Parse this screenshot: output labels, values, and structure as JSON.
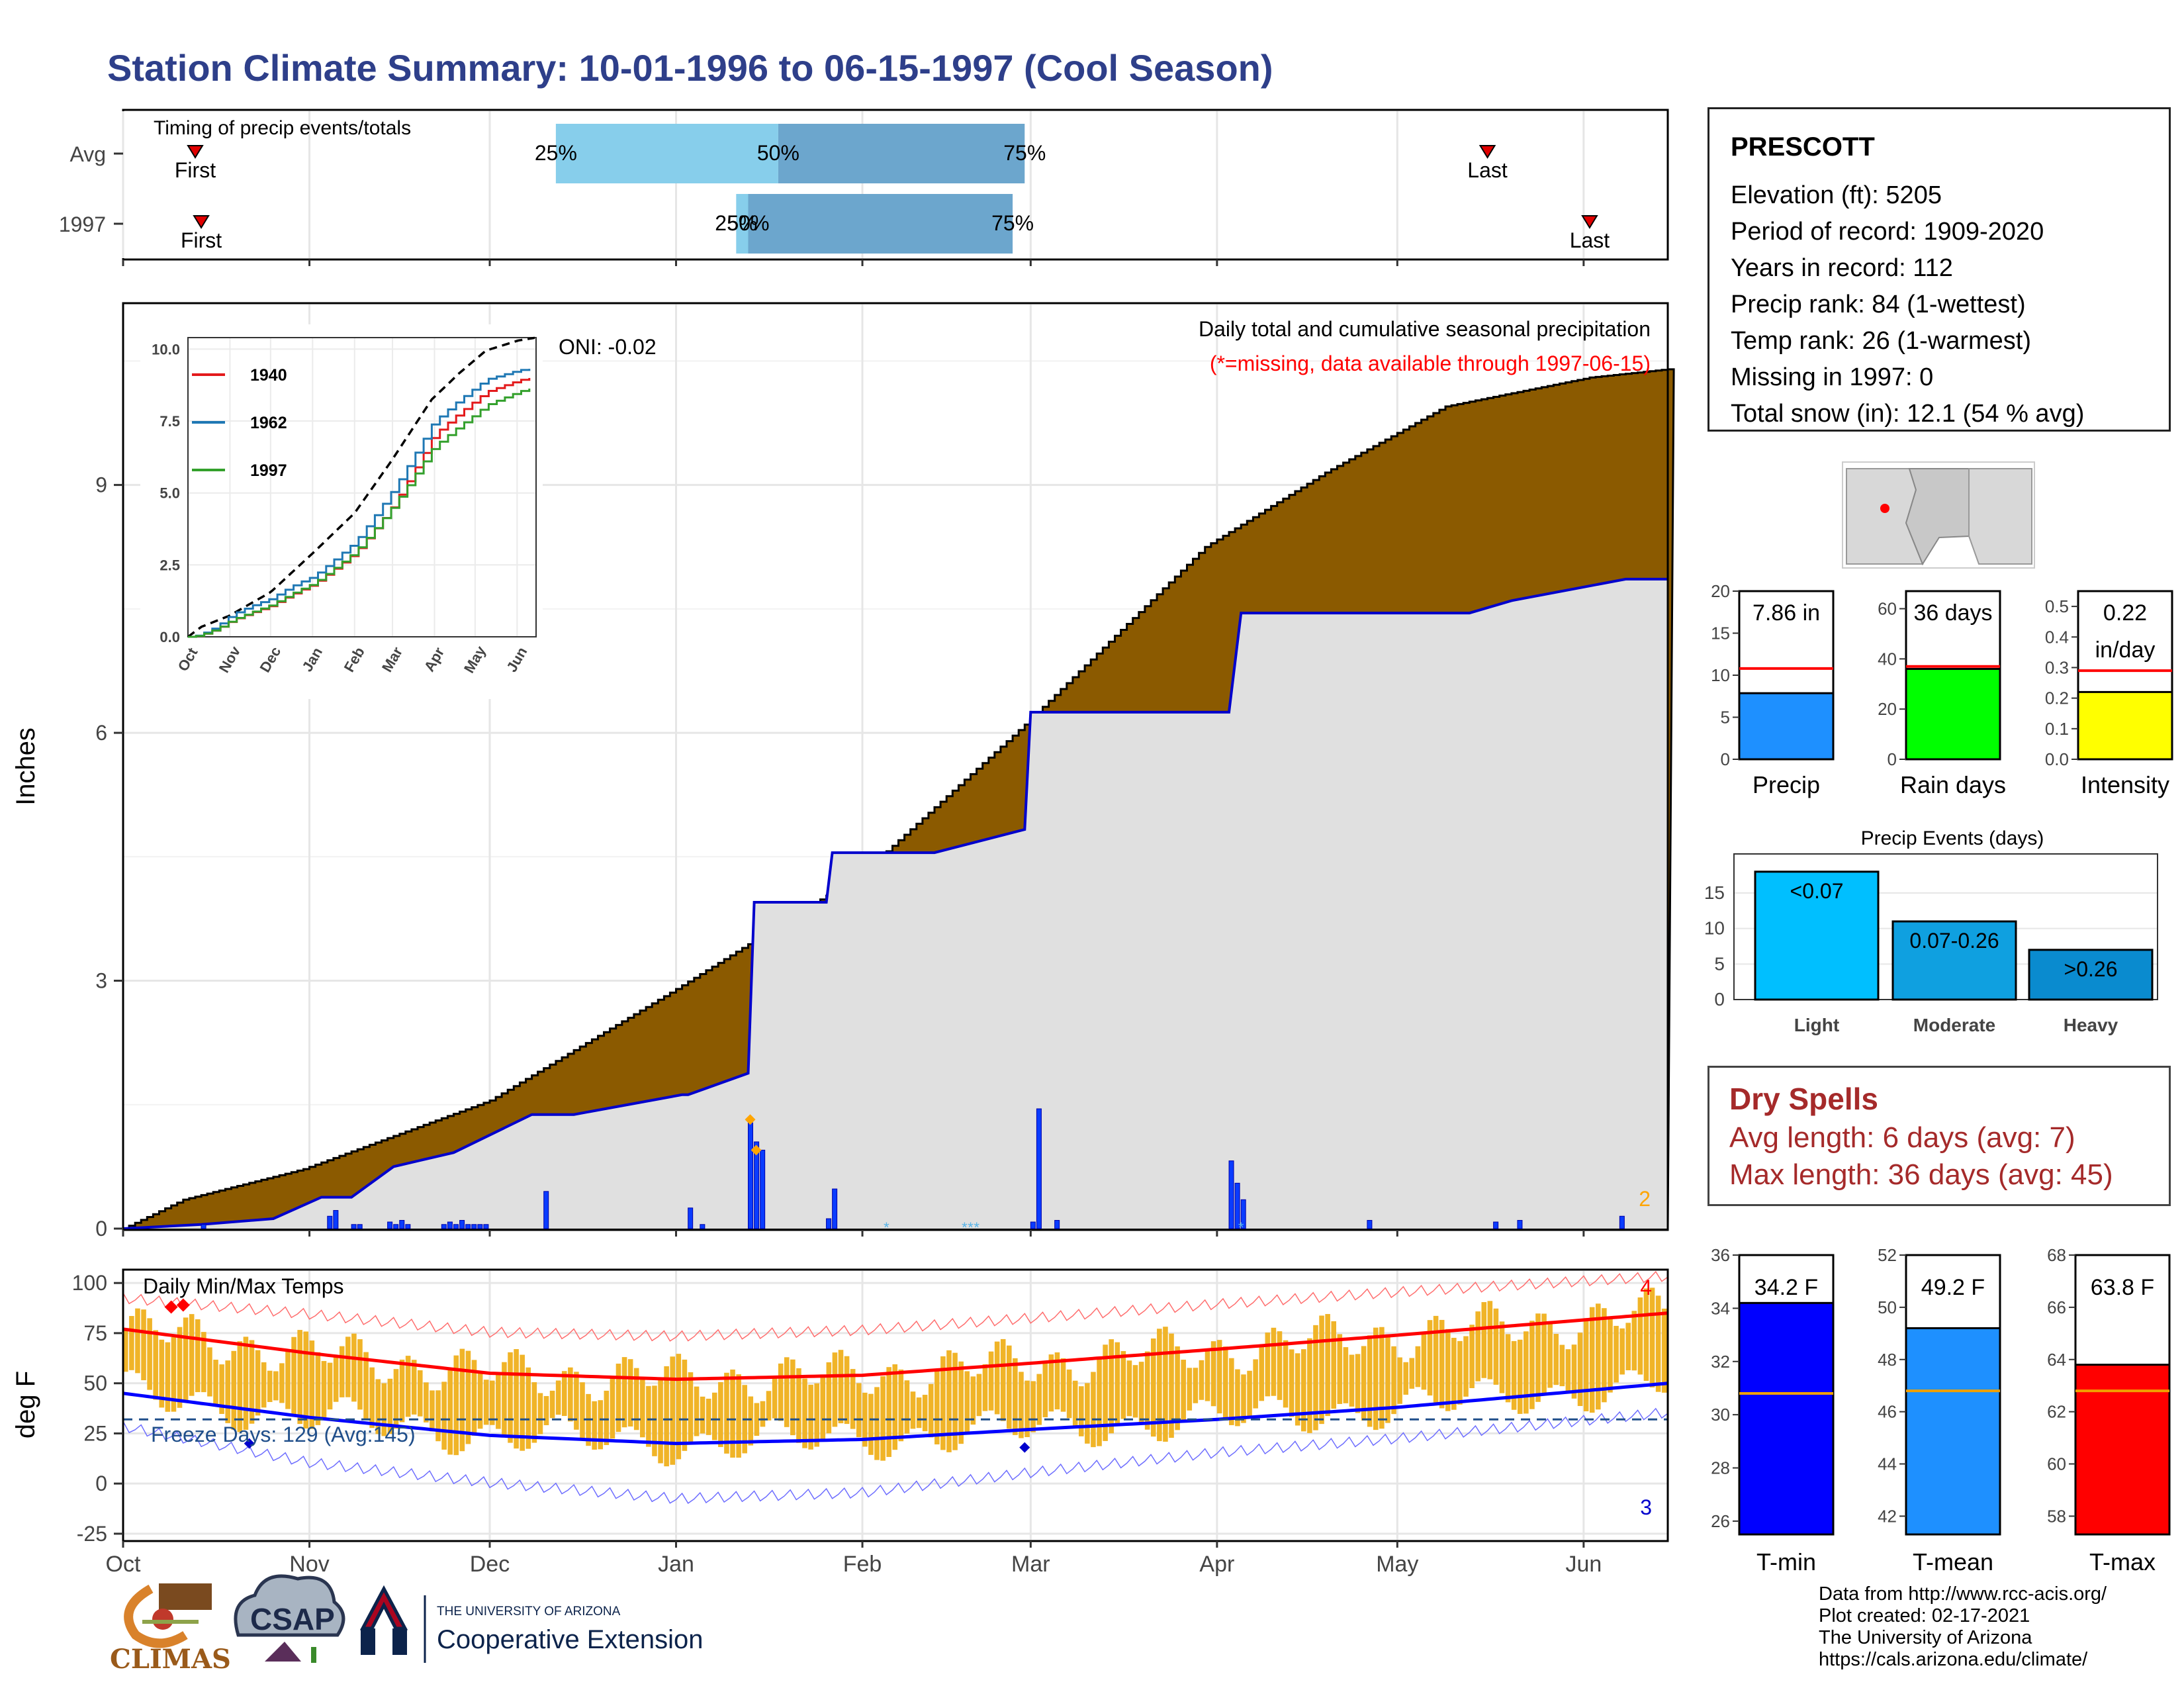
{
  "title": "Station Climate Summary: 10-01-1996 to 06-15-1997 (Cool Season)",
  "colors": {
    "title": "#2e3f8a",
    "avg_cumulative": "#8b5a00",
    "current_cumulative": "#e0e0e0",
    "current_line": "#0000cc",
    "bars_range": "#f0b428",
    "tmax_line": "#ff0000",
    "tmin_line": "#0000ff",
    "spell_text": "#a52a2a"
  },
  "timing": {
    "label": "Timing of precip events/totals",
    "rows": [
      {
        "name": "Avg",
        "first_label": "First",
        "last_label": "Last",
        "first_day": 12,
        "last_day": 227,
        "p25_day": 72,
        "p50_day": 109,
        "p75_day": 150,
        "p25_label": "25%",
        "p50_label": "50%",
        "p75_label": "75%"
      },
      {
        "name": "1997",
        "first_label": "First",
        "last_label": "Last",
        "first_day": 13,
        "last_day": 244,
        "p25_day": 102,
        "p50_day": 104,
        "p75_day": 148,
        "p25_label": "25%",
        "p50_label": "50%",
        "p75_label": "75%"
      }
    ]
  },
  "precip_panel": {
    "ylabel": "Inches",
    "yticks": [
      "0",
      "3",
      "6",
      "9"
    ],
    "oni": "ONI: -0.02",
    "caption": "Daily total and cumulative seasonal precipitation",
    "missing_note": "(*=missing, data available through 1997-06-15)",
    "corner_count": "2"
  },
  "temp_panel": {
    "ylabel": "deg F",
    "title": "Daily Min/Max Temps",
    "yticks": [
      "-25",
      "0",
      "25",
      "50",
      "75",
      "100"
    ],
    "freeze": "Freeze Days: 129 (Avg:145)",
    "count_high": "4",
    "count_low": "3"
  },
  "months": [
    "Oct",
    "Nov",
    "Dec",
    "Jan",
    "Feb",
    "Mar",
    "Apr",
    "May",
    "Jun"
  ],
  "inset": {
    "yticks": [
      "0.0",
      "2.5",
      "5.0",
      "7.5",
      "10.0"
    ],
    "months": [
      "Oct",
      "Nov",
      "Dec",
      "Jan",
      "Feb",
      "Mar",
      "Apr",
      "May",
      "Jun"
    ],
    "legend": [
      {
        "name": "1940",
        "color": "#e31a1c"
      },
      {
        "name": "1962",
        "color": "#1f78b4"
      },
      {
        "name": "1997",
        "color": "#33a02c"
      }
    ]
  },
  "station": {
    "name": "PRESCOTT",
    "lines": [
      "Elevation (ft): 5205",
      "Period of record: 1909-2020",
      "Years in record: 112",
      "Precip rank: 84 (1-wettest)",
      "Temp rank: 26 (1-warmest)",
      "Missing in 1997: 0",
      "Total snow (in): 12.1 (54 % avg)"
    ]
  },
  "summary_bars": [
    {
      "label": "Precip",
      "value_label": "7.86 in",
      "value": 7.86,
      "avg": 10.8,
      "ymax": 20,
      "yticks": [
        "0",
        "5",
        "10",
        "15",
        "20"
      ],
      "color": "#1e90ff"
    },
    {
      "label": "Rain days",
      "value_label": "36 days",
      "value": 36,
      "avg": 37,
      "ymax": 67,
      "yticks": [
        "0",
        "20",
        "40",
        "60"
      ],
      "color": "#00ff00"
    },
    {
      "label": "Intensity",
      "value_label": "0.22",
      "value_label2": "in/day",
      "value": 0.22,
      "avg": 0.29,
      "ymax": 0.55,
      "yticks": [
        "0.0",
        "0.1",
        "0.2",
        "0.3",
        "0.4",
        "0.5"
      ],
      "color": "#ffff00"
    }
  ],
  "precip_events": {
    "title": "Precip Events (days)",
    "yticks": [
      "0",
      "5",
      "10",
      "15"
    ],
    "bars": [
      {
        "label": "Light",
        "value_label": "<0.07",
        "value": 18,
        "color": "#00bfff"
      },
      {
        "label": "Moderate",
        "value_label": "0.07-0.26",
        "value": 11,
        "color": "#0fa0e0"
      },
      {
        "label": "Heavy",
        "value_label": ">0.26",
        "value": 7,
        "color": "#0a8bcf"
      }
    ]
  },
  "dry_spells": {
    "title": "Dry Spells",
    "avg": "Avg length: 6 days (avg: 7)",
    "max": "Max length: 36 days (avg: 45)"
  },
  "temp_bars": [
    {
      "label": "T-min",
      "value_label": "34.2 F",
      "value": 34.2,
      "avg": 30.8,
      "ymin": 25.5,
      "ymax": 36,
      "yticks": [
        "26",
        "28",
        "30",
        "32",
        "34",
        "36"
      ],
      "color": "#0000ff"
    },
    {
      "label": "T-mean",
      "value_label": "49.2 F",
      "value": 49.2,
      "avg": 46.8,
      "ymin": 41.3,
      "ymax": 52,
      "yticks": [
        "42",
        "44",
        "46",
        "48",
        "50",
        "52"
      ],
      "color": "#1e90ff"
    },
    {
      "label": "T-max",
      "value_label": "63.8 F",
      "value": 63.8,
      "avg": 62.8,
      "ymin": 57.3,
      "ymax": 68,
      "yticks": [
        "58",
        "60",
        "62",
        "64",
        "66",
        "68"
      ],
      "color": "#ff0000"
    }
  ],
  "credits": [
    "Data from http://www.rcc-acis.org/",
    "Plot created: 02-17-2021",
    "The University of Arizona",
    "https://cals.arizona.edu/climate/"
  ],
  "logos": {
    "climas": "CLIMAS",
    "csap": "CSAP",
    "ua_small": "THE UNIVERSITY OF ARIZONA",
    "ua_big": "Cooperative Extension"
  },
  "chart_data": [
    {
      "type": "area",
      "title": "Daily total and cumulative seasonal precipitation",
      "ylabel": "Inches",
      "ylim": [
        0,
        11.2
      ],
      "x_unit": "day of season from 1996-10-01",
      "series": [
        {
          "name": "Avg",
          "x": [
            0,
            10,
            30,
            61,
            92,
            123,
            150,
            180,
            200,
            220,
            244,
            257
          ],
          "values": [
            0,
            0.35,
            0.72,
            1.55,
            2.9,
            4.3,
            6.1,
            8.25,
            9.15,
            9.95,
            10.3,
            10.4
          ]
        },
        {
          "name": "1997",
          "x": [
            0,
            13,
            25,
            33,
            38,
            45,
            55,
            68,
            75,
            93,
            94,
            104,
            105,
            117,
            118,
            135,
            150,
            151,
            184,
            186,
            224,
            231,
            250,
            257
          ],
          "values": [
            0,
            0.05,
            0.12,
            0.38,
            0.38,
            0.75,
            0.92,
            1.38,
            1.38,
            1.62,
            1.62,
            1.88,
            3.95,
            3.95,
            4.55,
            4.55,
            4.83,
            6.25,
            6.25,
            7.45,
            7.45,
            7.6,
            7.86,
            7.86
          ]
        },
        {
          "name": "Daily",
          "x": [
            13,
            34,
            35,
            38,
            39,
            44,
            45,
            46,
            47,
            53,
            54,
            55,
            56,
            57,
            58,
            59,
            60,
            70,
            94,
            96,
            104,
            105,
            106,
            117,
            118,
            151,
            152,
            155,
            184,
            185,
            186,
            207,
            228,
            232,
            249
          ],
          "values": [
            0.05,
            0.15,
            0.22,
            0.05,
            0.05,
            0.08,
            0.05,
            0.1,
            0.05,
            0.05,
            0.08,
            0.05,
            0.1,
            0.05,
            0.05,
            0.05,
            0.05,
            0.45,
            0.25,
            0.05,
            1.28,
            1.05,
            0.95,
            0.12,
            0.48,
            0.08,
            1.45,
            0.1,
            0.82,
            0.55,
            0.35,
            0.1,
            0.08,
            0.1,
            0.15
          ]
        }
      ]
    },
    {
      "type": "line",
      "title": "Daily Min/Max Temps",
      "ylabel": "deg F",
      "ylim": [
        -28,
        106
      ],
      "x_unit": "day of season from 1996-10-01",
      "series": [
        {
          "name": "Avg max",
          "x": [
            0,
            31,
            61,
            92,
            123,
            151,
            182,
            212,
            257
          ],
          "values": [
            77,
            65,
            55,
            52,
            54,
            60,
            67,
            74,
            85
          ]
        },
        {
          "name": "Avg min",
          "x": [
            0,
            31,
            61,
            92,
            123,
            151,
            182,
            212,
            257
          ],
          "values": [
            45,
            33,
            24,
            20,
            22,
            27,
            32,
            38,
            50
          ]
        },
        {
          "name": "Record high",
          "x": [
            0,
            31,
            61,
            92,
            123,
            151,
            182,
            212,
            257
          ],
          "values": [
            92,
            84,
            75,
            73,
            76,
            82,
            89,
            95,
            103
          ]
        },
        {
          "name": "Record low",
          "x": [
            0,
            31,
            61,
            92,
            123,
            151,
            182,
            212,
            257
          ],
          "values": [
            28,
            10,
            0,
            -8,
            -5,
            5,
            15,
            22,
            35
          ]
        }
      ],
      "freeze_line": 32
    }
  ]
}
